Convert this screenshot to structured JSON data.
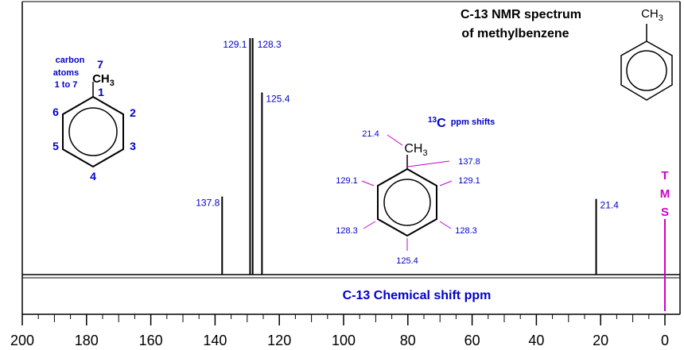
{
  "title": {
    "line1": "C-13 NMR spectrum",
    "line2": "of methylbenzene",
    "ch3_label": "CH3"
  },
  "chart_data": {
    "type": "bar",
    "xlabel": "C-13 Chemical shift ppm",
    "xlim": [
      200,
      0
    ],
    "x_ticks": [
      "200",
      "180",
      "160",
      "140",
      "120",
      "100",
      "80",
      "60",
      "40",
      "20",
      "0"
    ],
    "grid": false,
    "peaks": [
      {
        "label": "137.8",
        "x": 137.8,
        "height": 0.33
      },
      {
        "label": "129.1",
        "x": 129.1,
        "height": 1.0
      },
      {
        "label": "128.3",
        "x": 128.3,
        "height": 1.0
      },
      {
        "label": "125.4",
        "x": 125.4,
        "height": 0.77
      },
      {
        "label": "21.4",
        "x": 21.4,
        "height": 0.32
      }
    ],
    "reference": {
      "label": "TMS",
      "letters": [
        "T",
        "M",
        "S"
      ],
      "x": 0
    }
  },
  "left_structure": {
    "caption": [
      "carbon",
      "atoms",
      "1 to 7"
    ],
    "ch3": "CH3",
    "numbers": [
      "1",
      "2",
      "3",
      "4",
      "5",
      "6",
      "7"
    ]
  },
  "shift_panel": {
    "heading_sup": "13",
    "heading_main": "C",
    "heading_rest": "ppm shifts",
    "ch3": "CH3",
    "labels": {
      "methyl": "21.4",
      "ipso": "137.8",
      "ortho_left": "129.1",
      "ortho_right": "129.1",
      "meta_left": "128.3",
      "meta_right": "128.3",
      "para": "125.4"
    }
  },
  "colors": {
    "text_blue": "#0000cc",
    "tms_magenta": "#cc00cc",
    "lines": "#000000"
  }
}
